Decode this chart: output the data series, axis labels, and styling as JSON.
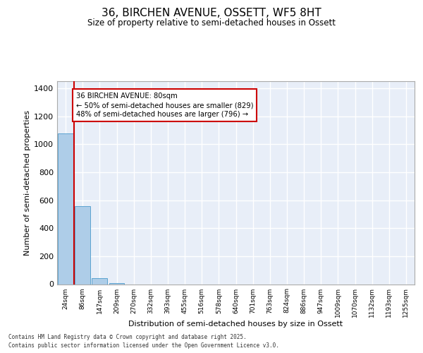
{
  "title_line1": "36, BIRCHEN AVENUE, OSSETT, WF5 8HT",
  "title_line2": "Size of property relative to semi-detached houses in Ossett",
  "xlabel": "Distribution of semi-detached houses by size in Ossett",
  "ylabel": "Number of semi-detached properties",
  "bar_labels": [
    "24sqm",
    "86sqm",
    "147sqm",
    "209sqm",
    "270sqm",
    "332sqm",
    "393sqm",
    "455sqm",
    "516sqm",
    "578sqm",
    "640sqm",
    "701sqm",
    "763sqm",
    "824sqm",
    "886sqm",
    "947sqm",
    "1009sqm",
    "1070sqm",
    "1132sqm",
    "1193sqm",
    "1255sqm"
  ],
  "bar_values": [
    1079,
    557,
    42,
    10,
    0,
    0,
    0,
    0,
    0,
    0,
    0,
    0,
    0,
    0,
    0,
    0,
    0,
    0,
    0,
    0,
    0
  ],
  "bar_color": "#aecde8",
  "bar_edge_color": "#5ba3d0",
  "background_color": "#e8eef8",
  "grid_color": "#ffffff",
  "annotation_text": "36 BIRCHEN AVENUE: 80sqm\n← 50% of semi-detached houses are smaller (829)\n48% of semi-detached houses are larger (796) →",
  "annotation_box_color": "#ffffff",
  "annotation_box_edge": "#cc0000",
  "marker_line_color": "#cc0000",
  "ylim": [
    0,
    1450
  ],
  "yticks": [
    0,
    200,
    400,
    600,
    800,
    1000,
    1200,
    1400
  ],
  "footer_line1": "Contains HM Land Registry data © Crown copyright and database right 2025.",
  "footer_line2": "Contains public sector information licensed under the Open Government Licence v3.0."
}
